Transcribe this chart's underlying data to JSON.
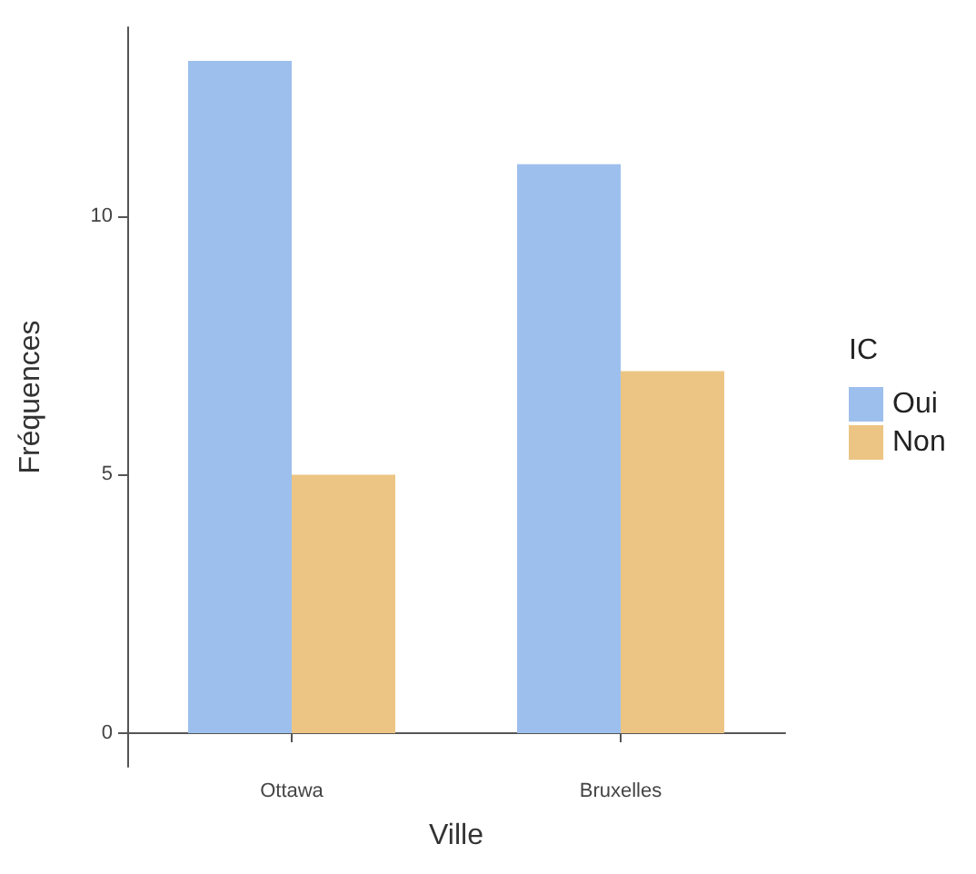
{
  "chart_data": {
    "type": "bar",
    "xlabel": "Ville",
    "ylabel": "Fréquences",
    "legend_title": "IC",
    "categories": [
      "Ottawa",
      "Bruxelles"
    ],
    "series": [
      {
        "name": "Oui",
        "color": "#9dbfed",
        "values": [
          13,
          11
        ]
      },
      {
        "name": "Non",
        "color": "#ecc584",
        "values": [
          5,
          7
        ]
      }
    ],
    "ylim": [
      -0.65,
      13.65
    ],
    "yticks": [
      0,
      5,
      10
    ],
    "grid": false,
    "legend": "right"
  }
}
